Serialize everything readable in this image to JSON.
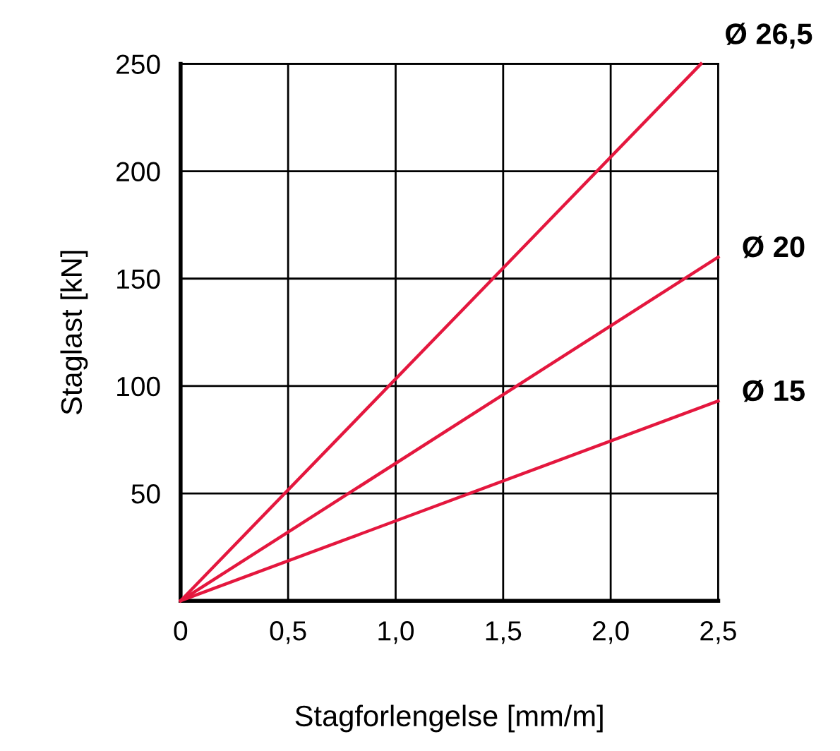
{
  "chart_data": {
    "type": "line",
    "xlabel": "Stagforlengelse [mm/m]",
    "ylabel": "Staglast [kN]",
    "xlim": [
      0,
      2.5
    ],
    "ylim": [
      0,
      250
    ],
    "xticks": [
      0,
      {
        "value": 0.5,
        "label": "0,5"
      },
      {
        "value": 1.0,
        "label": "1,0"
      },
      {
        "value": 1.5,
        "label": "1,5"
      },
      {
        "value": 2.0,
        "label": "2,0"
      },
      {
        "value": 2.5,
        "label": "2,5"
      }
    ],
    "yticks": [
      50,
      100,
      150,
      200,
      250
    ],
    "grid": true,
    "legend": false,
    "marker": "none",
    "line_style": "solid",
    "series": [
      {
        "name": "Ø 26,5",
        "color": "#e4173e",
        "x": [
          0,
          2.42
        ],
        "values": [
          0,
          250
        ]
      },
      {
        "name": "Ø 20",
        "color": "#e4173e",
        "x": [
          0,
          2.5
        ],
        "values": [
          0,
          160
        ]
      },
      {
        "name": "Ø 15",
        "color": "#e4173e",
        "x": [
          0,
          2.5
        ],
        "values": [
          0,
          93
        ]
      }
    ]
  }
}
